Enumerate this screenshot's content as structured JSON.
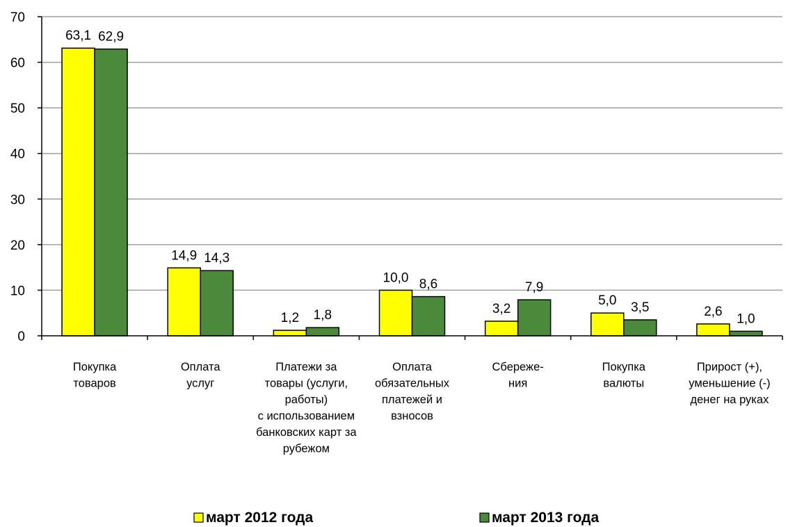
{
  "chart_data": {
    "type": "bar",
    "categories": [
      [
        "Покупка",
        "товаров"
      ],
      [
        "Оплата",
        "услуг"
      ],
      [
        "Платежи  за",
        "товары (услуги,",
        "работы)",
        "с использованием",
        "банковских  карт за",
        "рубежом"
      ],
      [
        "Оплата",
        "обязательных",
        "платежей и",
        "взносов"
      ],
      [
        "Сбереже-",
        "ния"
      ],
      [
        "Покупка",
        "валюты"
      ],
      [
        "Прирост  (+),",
        "уменьшение  (-)",
        "денег на руках"
      ]
    ],
    "series": [
      {
        "name": "март 2012 года",
        "color": "#ffff00",
        "values": [
          63.1,
          14.9,
          1.2,
          10.0,
          3.2,
          5.0,
          2.6
        ],
        "labels": [
          "63,1",
          "14,9",
          "1,2",
          "10,0",
          "3,2",
          "5,0",
          "2,6"
        ]
      },
      {
        "name": "март 2013 года",
        "color": "#4a8a3a",
        "values": [
          62.9,
          14.3,
          1.8,
          8.6,
          7.9,
          3.5,
          1.0
        ],
        "labels": [
          "62,9",
          "14,3",
          "1,8",
          "8,6",
          "7,9",
          "3,5",
          "1,0"
        ]
      }
    ],
    "ylim": [
      0,
      70
    ],
    "yticks": [
      "0",
      "10",
      "20",
      "30",
      "40",
      "50",
      "60",
      "70"
    ],
    "grid": true,
    "legend_position": "bottom"
  }
}
